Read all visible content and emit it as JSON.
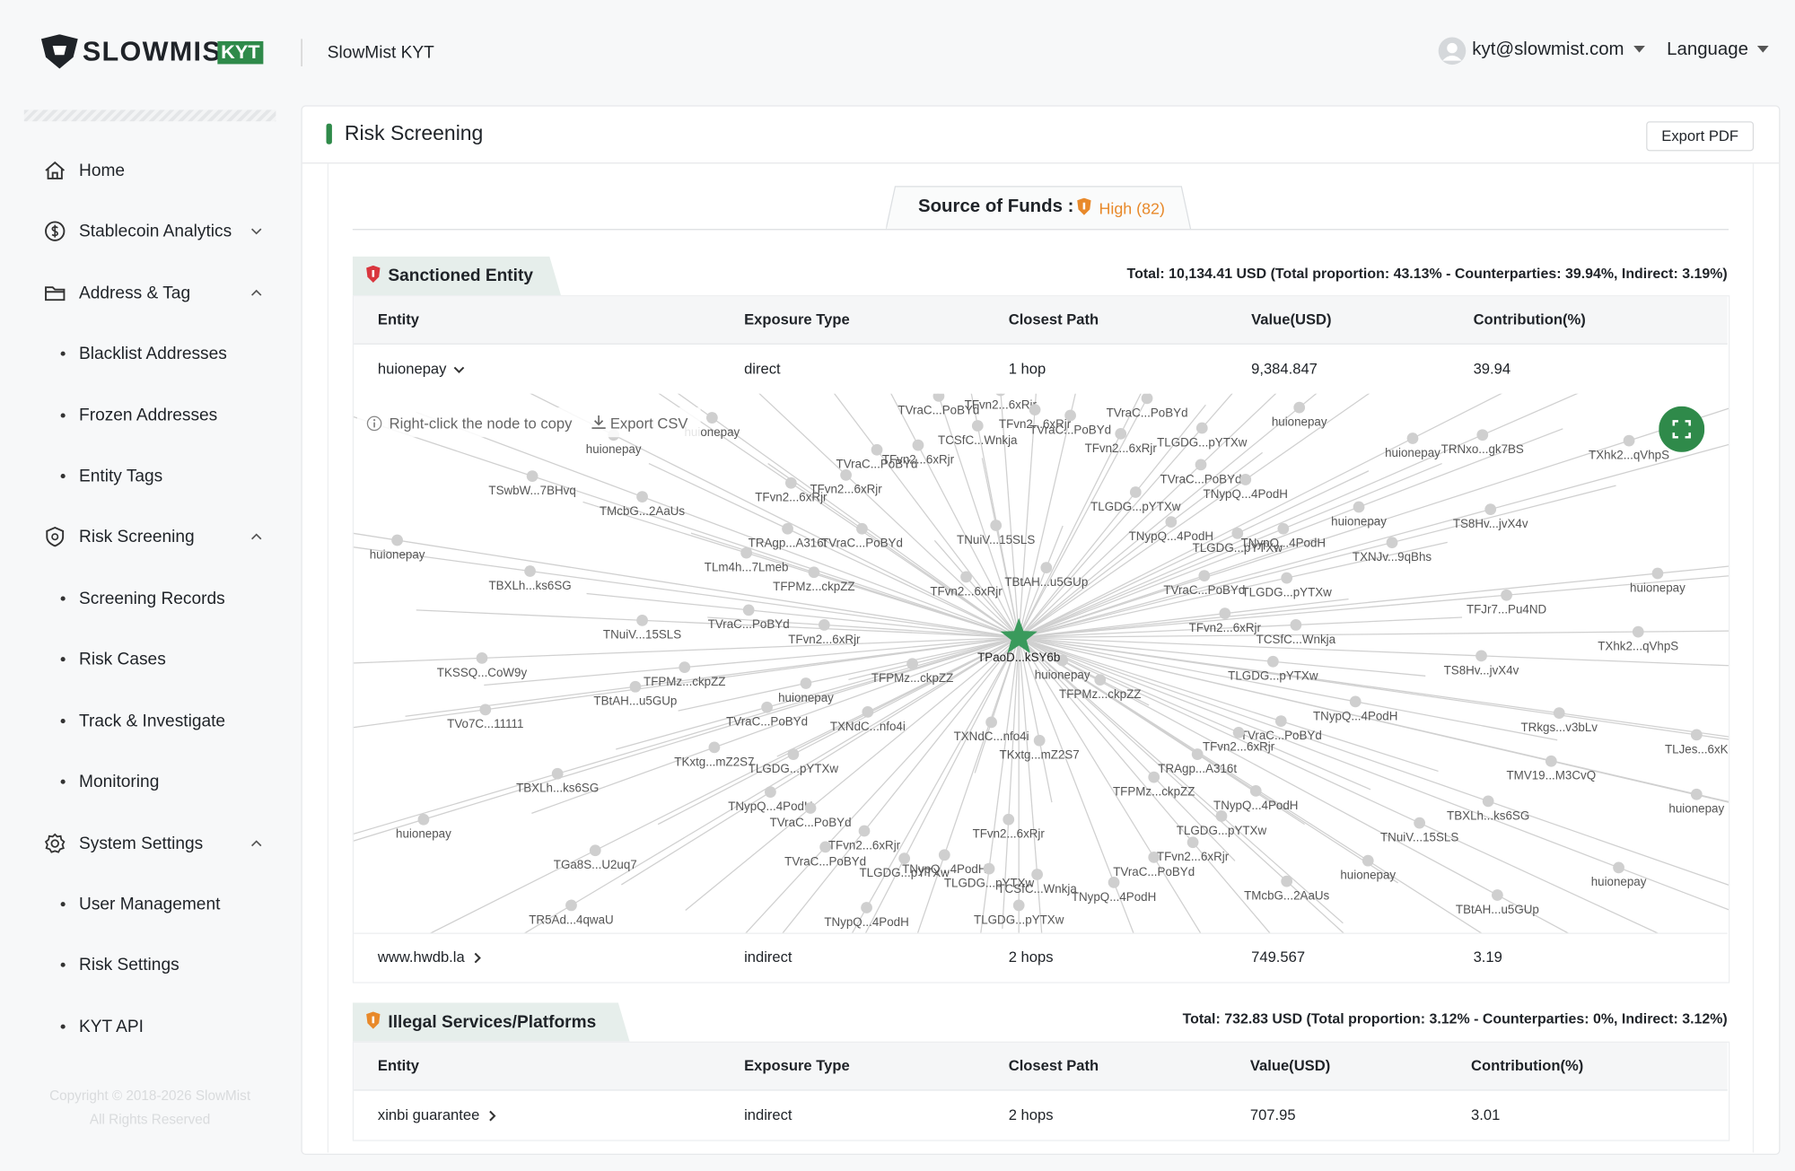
{
  "header": {
    "brand": "SLOWMIST",
    "badge": "KYT",
    "product": "SlowMist KYT",
    "user": "kyt@slowmist.com",
    "language": "Language"
  },
  "sidebar": {
    "items": [
      "Home",
      "Stablecoin Analytics",
      "Address & Tag",
      "Blacklist Addresses",
      "Frozen Addresses",
      "Entity Tags",
      "Risk Screening",
      "Screening Records",
      "Risk Cases",
      "Track & Investigate",
      "Monitoring",
      "System Settings",
      "User Management",
      "Risk Settings",
      "KYT API"
    ],
    "copyright": "Copyright © 2018-2026 SlowMist",
    "rights": "All Rights Reserved"
  },
  "page": {
    "title": "Risk Screening",
    "export_pdf": "Export PDF",
    "tab_label": "Source of Funds :",
    "risk_level": "High (82)"
  },
  "sections": [
    {
      "title": "Sanctioned Entity",
      "summary": "Total: 10,134.41 USD (Total proportion: 43.13% - Counterparties: 39.94%, Indirect: 3.19%)",
      "columns": [
        "Entity",
        "Exposure Type",
        "Closest Path",
        "Value(USD)",
        "Contribution(%)"
      ],
      "rows": [
        [
          "huionepay",
          "direct",
          "1 hop",
          "9,384.847",
          "39.94"
        ],
        [
          "www.hwdb.la",
          "indirect",
          "2 hops",
          "749.567",
          "3.19"
        ]
      ]
    },
    {
      "title": "Illegal Services/Platforms",
      "summary": "Total: 732.83 USD (Total proportion: 3.12% - Counterparties: 0%, Indirect: 3.12%)",
      "columns": [
        "Entity",
        "Exposure Type",
        "Closest Path",
        "Value(USD)",
        "Contribution(%)"
      ],
      "rows": [
        [
          "xinbi guarantee",
          "indirect",
          "2 hops",
          "707.95",
          "3.01"
        ]
      ]
    }
  ],
  "graph": {
    "hint": "Right-click the node to copy",
    "export_csv": "Export CSV",
    "center": "TPaoD...kSY6b",
    "nodes": [
      "huionepay",
      "huionepay",
      "TSwbW...7BHvq",
      "TMcbG...2AaUs",
      "TFvn2...6xRjr",
      "TFvn2...6xRjr",
      "TVraC...PoBYd",
      "TFvn2...6xRjr",
      "TVraC...PoBYd",
      "TFvn2...6xRjr",
      "TCSfC...Wnkja",
      "TFvn2...6xRjr",
      "TVraC...PoBYd",
      "TVraC...PoBYd",
      "TFvn2...6xRjr",
      "TLGDG...pYTXw",
      "huionepay",
      "huionepay",
      "TRNxo...gk7BS",
      "TXhk2...qVhpS",
      "TVraC...PoBYd",
      "TNypQ...4PodH",
      "TLGDG...pYTXw",
      "huionepay",
      "TS8Hv...jvX4v",
      "TNypQ...4PodH",
      "TLGDG...pYTXw",
      "TNypQ...4PodH",
      "TXNJv...9qBhs",
      "huionepay",
      "TRAgp...A316t",
      "TVraC...PoBYd",
      "TNuiV...15SLS",
      "TLm4h...7Lmeb",
      "TBXLh...ks6SG",
      "TFPMz...ckpZZ",
      "TFvn2...6xRjr",
      "TBtAH...u5GUp",
      "TVraC...PoBYd",
      "TLGDG...pYTXw",
      "huionepay",
      "TFJr7...Pu4ND",
      "TNuiV...15SLS",
      "TVraC...PoBYd",
      "TFvn2...6xRjr",
      "TFvn2...6xRjr",
      "TCSfC...Wnkja",
      "TXhk2...qVhpS",
      "TKSSQ...CoW9y",
      "TFPMz...ckpZZ",
      "TBtAH...u5GUp",
      "TFPMz...ckpZZ",
      "huionepay",
      "huionepay",
      "TFPMz...ckpZZ",
      "TLGDG...pYTXw",
      "TS8Hv...jvX4v",
      "TVo7C...11111",
      "TVraC...PoBYd",
      "TXNdC...nfo4i",
      "TXNdC...nfo4i",
      "TNypQ...4PodH",
      "TRkgs...v3bLv",
      "TLJes...6xK",
      "TVraC...PoBYd",
      "TFvn2...6xRjr",
      "TKxtg...mZ2S7",
      "TLGDG...pYTXw",
      "TKxtg...mZ2S7",
      "TRAgp...A316t",
      "TMV19...M3CvQ",
      "TBXLh...ks6SG",
      "TFPMz...ckpZZ",
      "TNypQ...4PodH",
      "TBXLh...ks6SG",
      "huionepay",
      "huionepay",
      "TNypQ...4PodH",
      "TVraC...PoBYd",
      "TLGDG...pYTXw",
      "TNuiV...15SLS",
      "TFvn2...6xRjr",
      "TFvn2...6xRjr",
      "TVraC...PoBYd",
      "TGa8S...U2uq7",
      "TLGDG...pYTXw",
      "TNypQ...4PodH",
      "TLGDG...pYTXw",
      "TCSfC...Wnkja",
      "TFvn2...6xRjr",
      "TVraC...PoBYd",
      "huionepay",
      "huionepay",
      "TNypQ...4PodH",
      "TMcbG...2AaUs",
      "TBtAH...u5GUp",
      "TR5Ad...4qwaU",
      "TNypQ...4PodH",
      "TLGDG...pYTXw"
    ]
  }
}
